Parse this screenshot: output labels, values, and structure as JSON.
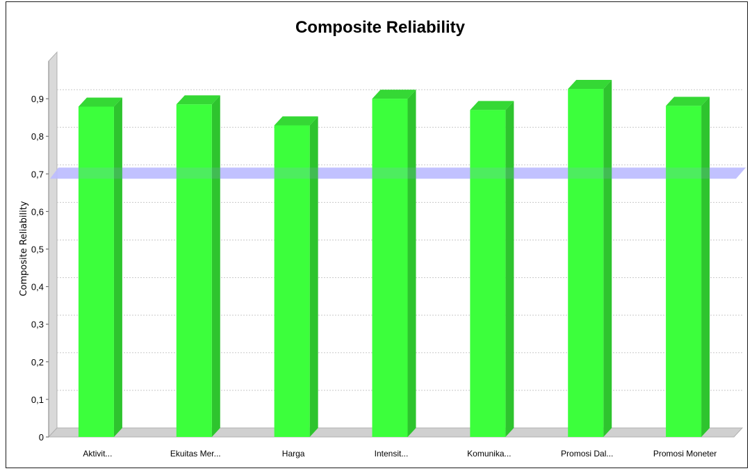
{
  "chart_data": {
    "type": "bar",
    "title": "Composite Reliability",
    "ylabel": "Composite Reliability",
    "xlabel": "",
    "categories": [
      "Aktivit...",
      "Ekuitas Mer...",
      "Harga",
      "Intensit...",
      "Komunika...",
      "Promosi Dal...",
      "Promosi Moneter"
    ],
    "values": [
      0.879,
      0.885,
      0.829,
      0.9,
      0.87,
      0.926,
      0.881
    ],
    "y_ticks": [
      "0",
      "0,1",
      "0,2",
      "0,3",
      "0,4",
      "0,5",
      "0,6",
      "0,7",
      "0,8",
      "0,9"
    ],
    "ylim": [
      0,
      1.0
    ],
    "reference_line": 0.7,
    "grid": true,
    "bar_color": "#3cff3c",
    "bar_side_color": "#2ec42e",
    "bar_top_color": "#35d835",
    "reference_color": "#c4c4ff"
  }
}
